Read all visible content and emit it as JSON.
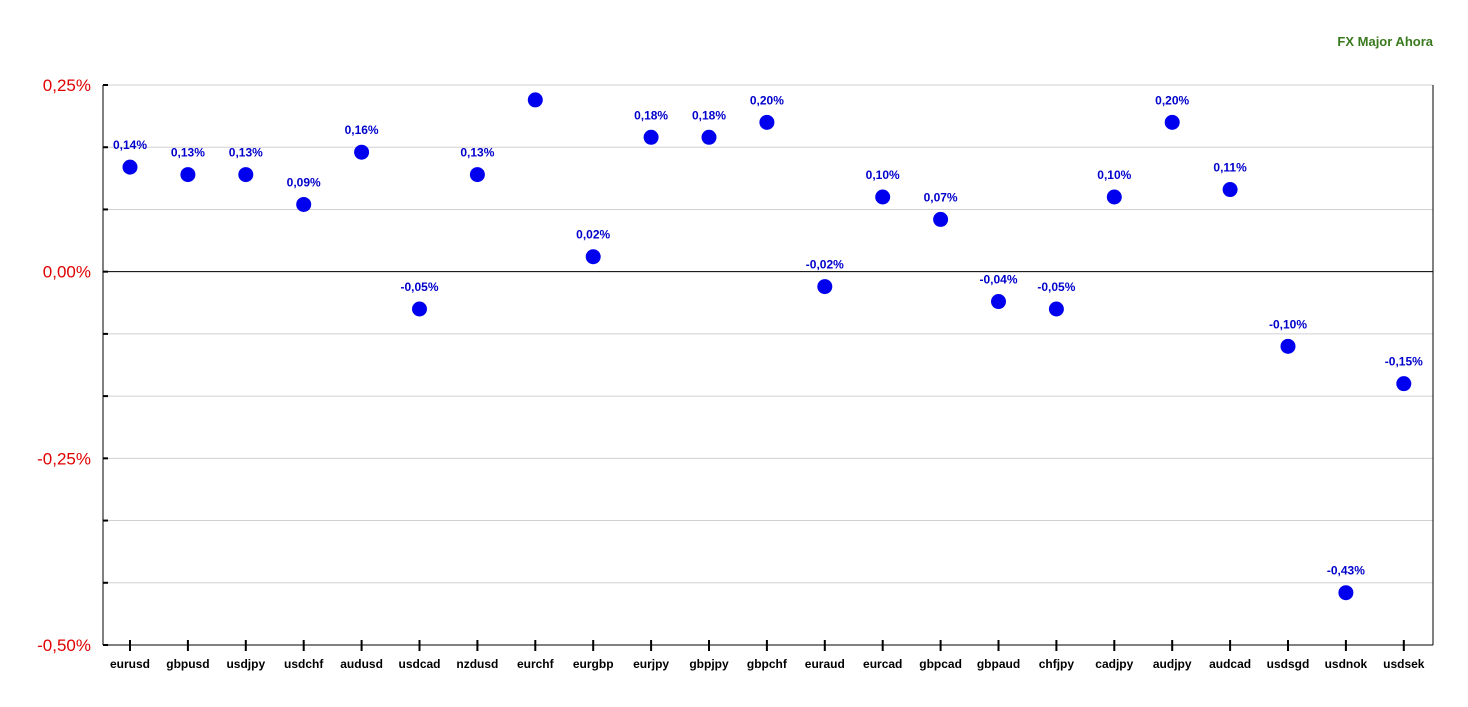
{
  "chart_data": {
    "type": "scatter",
    "title": "FX Major Ahora",
    "categories": [
      "eurusd",
      "gbpusd",
      "usdjpy",
      "usdchf",
      "audusd",
      "usdcad",
      "nzdusd",
      "eurchf",
      "eurgbp",
      "eurjpy",
      "gbpjpy",
      "gbpchf",
      "euraud",
      "eurcad",
      "gbpcad",
      "gbpaud",
      "chfjpy",
      "cadjpy",
      "audjpy",
      "audcad",
      "usdsgd",
      "usdnok",
      "usdsek"
    ],
    "values": [
      0.14,
      0.13,
      0.13,
      0.09,
      0.16,
      -0.05,
      0.13,
      0.23,
      0.02,
      0.18,
      0.18,
      0.2,
      -0.02,
      0.1,
      0.07,
      -0.04,
      -0.05,
      0.1,
      0.2,
      0.11,
      -0.1,
      -0.43,
      -0.15
    ],
    "data_labels": [
      "0,14%",
      "0,13%",
      "0,13%",
      "0,09%",
      "0,16%",
      "-0,05%",
      "0,13%",
      "",
      "0,02%",
      "0,18%",
      "0,18%",
      "0,20%",
      "-0,02%",
      "0,10%",
      "0,07%",
      "-0,04%",
      "-0,05%",
      "0,10%",
      "0,20%",
      "0,11%",
      "-0,10%",
      "-0,43%",
      "-0,15%"
    ],
    "y_ticks": [
      0.25,
      0.0,
      -0.25,
      -0.5
    ],
    "y_tick_labels": [
      "0,25%",
      "0,00%",
      "-0,25%",
      "-0,50%"
    ],
    "ylim": [
      -0.5,
      0.25
    ],
    "xlabel": "",
    "ylabel": "",
    "grid": true,
    "colors": {
      "point": "#0000ee",
      "label": "#0000cc",
      "ytick": "#e00000",
      "title": "#3a7a1e",
      "grid": "#d0d0d0"
    }
  }
}
